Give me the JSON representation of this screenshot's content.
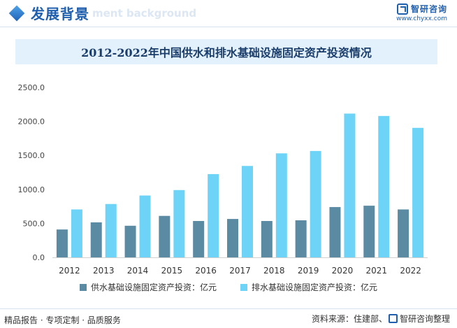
{
  "header": {
    "title": "发展背景",
    "ghost_subtitle": "ment background",
    "brand_name": "智研咨询",
    "brand_url": "www.chyxx.com"
  },
  "chart_data": {
    "type": "bar",
    "title": "2012-2022年中国供水和排水基础设施固定资产投资情况",
    "categories": [
      "2012",
      "2013",
      "2014",
      "2015",
      "2016",
      "2017",
      "2018",
      "2019",
      "2020",
      "2021",
      "2022"
    ],
    "series": [
      {
        "name": "供水基础设施固定资产投资：亿元",
        "color": "#5b8aa3",
        "values": [
          410,
          515,
          465,
          610,
          535,
          565,
          535,
          545,
          740,
          760,
          705
        ]
      },
      {
        "name": "排水基础设施固定资产投资：亿元",
        "color": "#6dd4f7",
        "values": [
          705,
          785,
          910,
          990,
          1225,
          1345,
          1530,
          1565,
          2115,
          2080,
          1905
        ]
      }
    ],
    "ylim": [
      0,
      2500
    ],
    "yticks": [
      "0.0",
      "500.0",
      "1000.0",
      "1500.0",
      "2000.0",
      "2500.0"
    ],
    "xlabel": "",
    "ylabel": "",
    "grid": false,
    "legend_position": "bottom"
  },
  "footer": {
    "left_text": "精品报告 · 专项定制 · 品质服务",
    "source_text": "资料来源：住建部、",
    "source_brand": "智研咨询整理"
  }
}
